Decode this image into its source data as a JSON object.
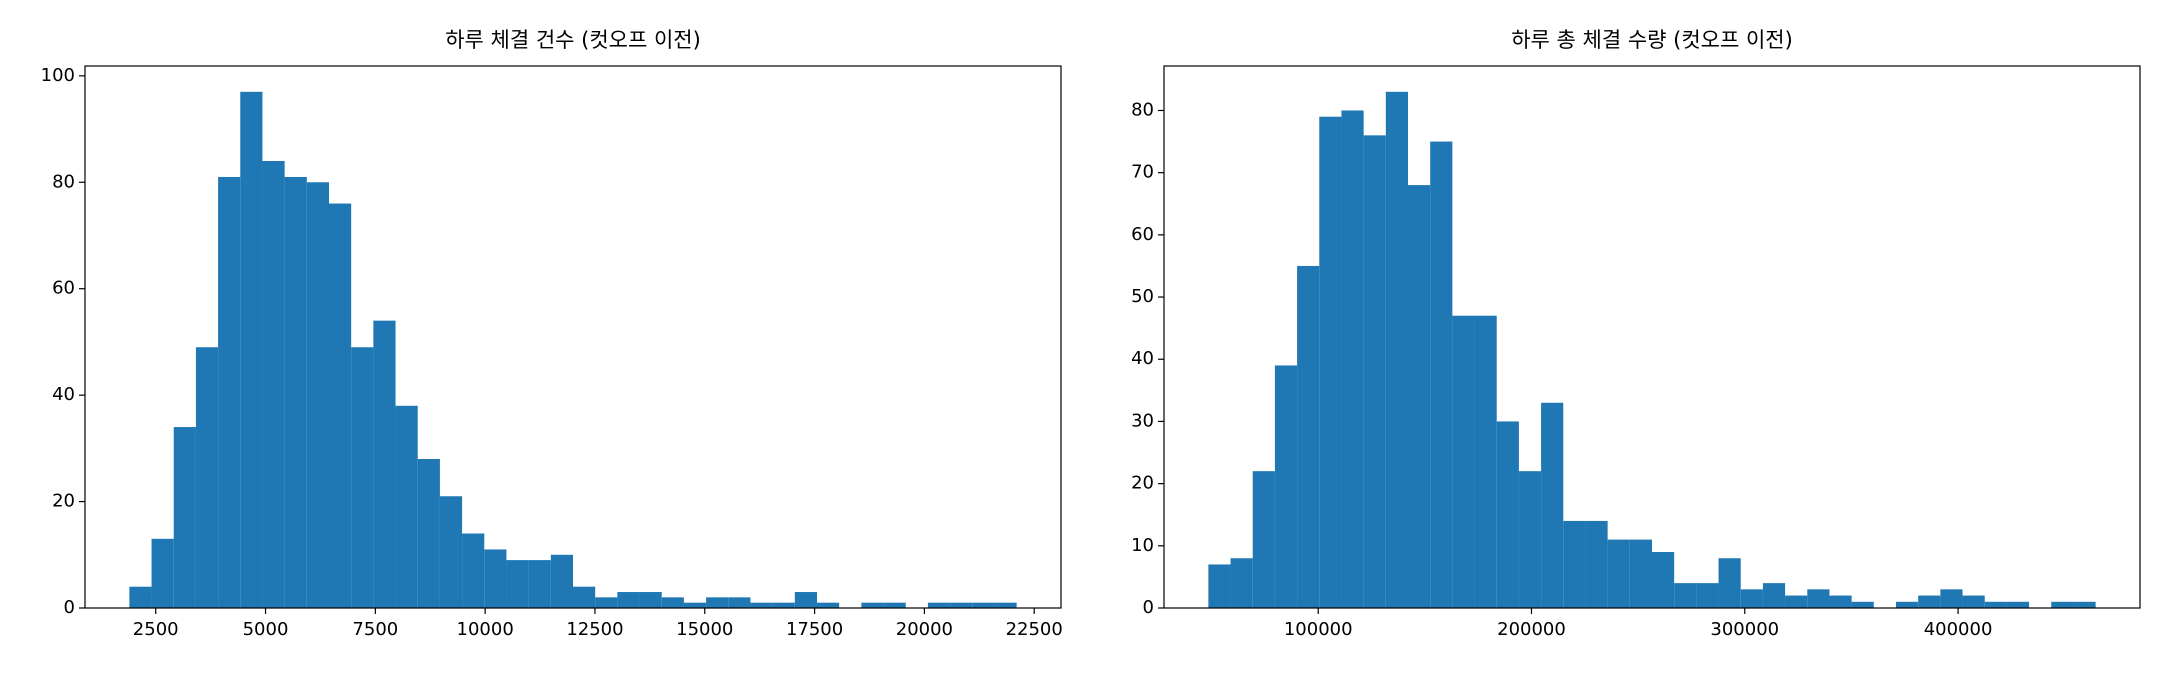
{
  "chart_data": [
    {
      "type": "histogram",
      "title": "하루 체결 건수 (컷오프 이전)",
      "color": "#1f77b4",
      "bins": [
        1900,
        2405,
        2910,
        3415,
        3920,
        4425,
        4930,
        5435,
        5940,
        6445,
        6950,
        7455,
        7960,
        8465,
        8970,
        9475,
        9980,
        10485,
        10990,
        11495,
        12000,
        12505,
        13010,
        13515,
        14020,
        14525,
        15030,
        15535,
        16040,
        16545,
        17050,
        17555,
        18060,
        18565,
        19070,
        19575,
        20080,
        20585,
        21090,
        21595,
        22100
      ],
      "values": [
        4,
        13,
        34,
        49,
        81,
        97,
        84,
        81,
        80,
        76,
        49,
        54,
        38,
        28,
        21,
        14,
        11,
        9,
        9,
        10,
        4,
        2,
        3,
        3,
        2,
        1,
        2,
        2,
        1,
        1,
        3,
        1,
        0,
        1,
        1,
        0,
        1,
        1,
        1,
        1
      ],
      "xlim": [
        890,
        23110
      ],
      "ylim": [
        0,
        101.85
      ],
      "xticks": [
        2500,
        5000,
        7500,
        10000,
        12500,
        15000,
        17500,
        20000,
        22500
      ],
      "yticks": [
        0,
        20,
        40,
        60,
        80,
        100
      ]
    },
    {
      "type": "histogram",
      "title": "하루 총 체결 수량 (컷오프 이전)",
      "color": "#1f77b4",
      "bins": [
        48500,
        58900,
        69300,
        79700,
        90100,
        100500,
        110900,
        121300,
        131700,
        142100,
        152500,
        162900,
        173300,
        183700,
        194100,
        204500,
        214900,
        225300,
        235700,
        246100,
        256500,
        266900,
        277300,
        287700,
        298100,
        308500,
        318900,
        329300,
        339700,
        350100,
        360500,
        370900,
        381300,
        391700,
        402100,
        412500,
        422900,
        433300,
        443700,
        454100,
        464500
      ],
      "values": [
        7,
        8,
        22,
        39,
        55,
        79,
        80,
        76,
        83,
        68,
        75,
        47,
        47,
        30,
        22,
        33,
        14,
        14,
        11,
        11,
        9,
        4,
        4,
        8,
        3,
        4,
        2,
        3,
        2,
        1,
        0,
        1,
        2,
        3,
        2,
        1,
        1,
        0,
        1,
        1
      ],
      "xlim": [
        27700,
        485300
      ],
      "ylim": [
        0,
        87.15
      ],
      "xticks": [
        100000,
        200000,
        300000,
        400000
      ],
      "yticks": [
        0,
        10,
        20,
        30,
        40,
        50,
        60,
        70,
        80
      ]
    }
  ]
}
